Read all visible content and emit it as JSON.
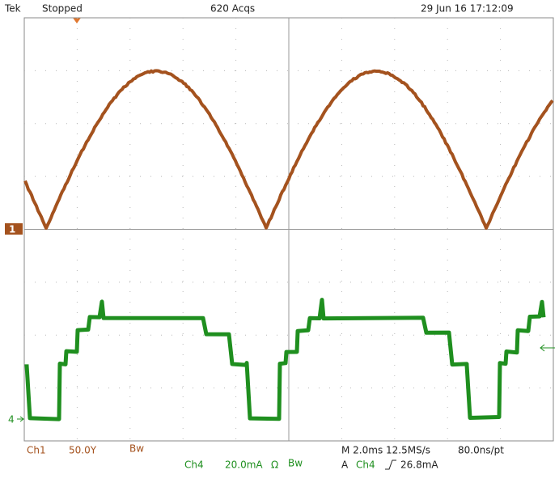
{
  "header": {
    "brand": "Tek",
    "status": "Stopped",
    "acquisitions": "620 Acqs",
    "timestamp": "29 Jun 16 17:12:09"
  },
  "markers": {
    "ch1": "1",
    "ch4": "4"
  },
  "footer": {
    "ch1_label": "Ch1",
    "ch1_scale": "50.0Y",
    "ch1_bw": "Bw",
    "ch4_label": "Ch4",
    "ch4_scale": "20.0mA",
    "ch4_impedance": "Ω",
    "ch4_bw": "Bw",
    "timebase": "M 2.0ms 12.5MS/s",
    "record": "80.0ns/pt",
    "trigger_label": "A",
    "trigger_source": "Ch4",
    "trigger_level": "26.8mA"
  }
}
